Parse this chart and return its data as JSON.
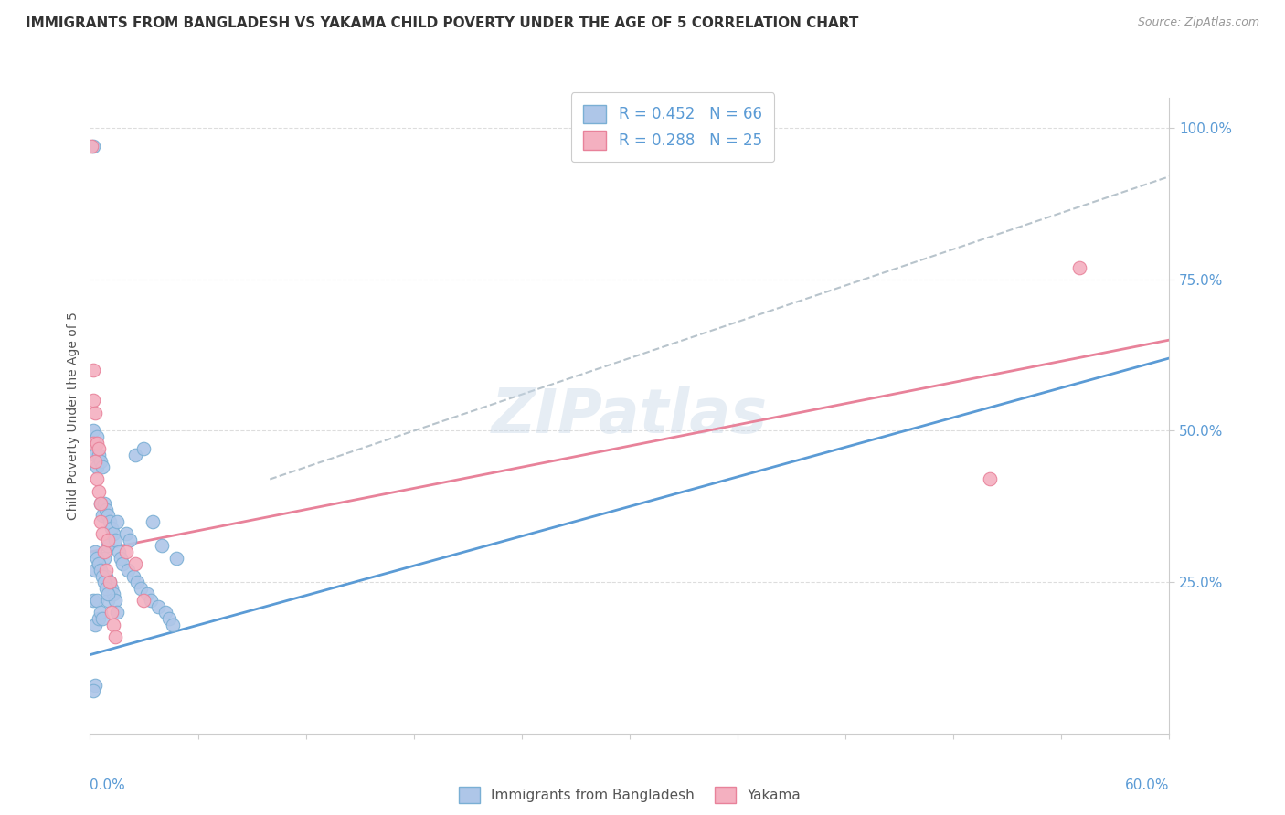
{
  "title": "IMMIGRANTS FROM BANGLADESH VS YAKAMA CHILD POVERTY UNDER THE AGE OF 5 CORRELATION CHART",
  "source": "Source: ZipAtlas.com",
  "ylabel": "Child Poverty Under the Age of 5",
  "xlim": [
    0.0,
    0.6
  ],
  "ylim": [
    0.0,
    1.05
  ],
  "ytick_vals": [
    0.25,
    0.5,
    0.75,
    1.0
  ],
  "ytick_labels": [
    "25.0%",
    "50.0%",
    "75.0%",
    "100.0%"
  ],
  "watermark": "ZIPatlas",
  "blue_scatter_x": [
    0.002,
    0.002,
    0.002,
    0.003,
    0.003,
    0.003,
    0.003,
    0.004,
    0.004,
    0.004,
    0.005,
    0.005,
    0.005,
    0.006,
    0.006,
    0.006,
    0.007,
    0.007,
    0.007,
    0.008,
    0.008,
    0.009,
    0.009,
    0.01,
    0.01,
    0.01,
    0.011,
    0.011,
    0.012,
    0.012,
    0.013,
    0.013,
    0.014,
    0.014,
    0.015,
    0.015,
    0.016,
    0.017,
    0.018,
    0.02,
    0.021,
    0.022,
    0.024,
    0.025,
    0.026,
    0.028,
    0.03,
    0.032,
    0.034,
    0.035,
    0.038,
    0.04,
    0.042,
    0.044,
    0.046,
    0.048,
    0.003,
    0.004,
    0.005,
    0.006,
    0.007,
    0.008,
    0.009,
    0.01,
    0.003,
    0.002
  ],
  "blue_scatter_y": [
    0.97,
    0.5,
    0.22,
    0.48,
    0.46,
    0.27,
    0.18,
    0.49,
    0.44,
    0.22,
    0.46,
    0.28,
    0.19,
    0.45,
    0.38,
    0.2,
    0.44,
    0.36,
    0.19,
    0.38,
    0.29,
    0.37,
    0.26,
    0.36,
    0.31,
    0.22,
    0.35,
    0.25,
    0.34,
    0.24,
    0.33,
    0.23,
    0.32,
    0.22,
    0.35,
    0.2,
    0.3,
    0.29,
    0.28,
    0.33,
    0.27,
    0.32,
    0.26,
    0.46,
    0.25,
    0.24,
    0.47,
    0.23,
    0.22,
    0.35,
    0.21,
    0.31,
    0.2,
    0.19,
    0.18,
    0.29,
    0.3,
    0.29,
    0.28,
    0.27,
    0.26,
    0.25,
    0.24,
    0.23,
    0.08,
    0.07
  ],
  "pink_scatter_x": [
    0.001,
    0.002,
    0.002,
    0.003,
    0.003,
    0.004,
    0.004,
    0.005,
    0.005,
    0.006,
    0.006,
    0.007,
    0.008,
    0.009,
    0.01,
    0.011,
    0.012,
    0.013,
    0.014,
    0.02,
    0.025,
    0.03,
    0.002,
    0.5,
    0.55
  ],
  "pink_scatter_y": [
    0.97,
    0.55,
    0.48,
    0.53,
    0.45,
    0.48,
    0.42,
    0.47,
    0.4,
    0.38,
    0.35,
    0.33,
    0.3,
    0.27,
    0.32,
    0.25,
    0.2,
    0.18,
    0.16,
    0.3,
    0.28,
    0.22,
    0.6,
    0.42,
    0.77
  ],
  "blue_line_x": [
    0.0,
    0.6
  ],
  "blue_line_y": [
    0.13,
    0.62
  ],
  "pink_line_x": [
    0.0,
    0.6
  ],
  "pink_line_y": [
    0.3,
    0.65
  ],
  "dashed_line_x": [
    0.1,
    0.6
  ],
  "dashed_line_y": [
    0.42,
    0.92
  ],
  "blue_line_color": "#5b9bd5",
  "pink_line_color": "#e8829a",
  "blue_scatter_color": "#aec6e8",
  "pink_scatter_color": "#f4b0c0",
  "blue_edge_color": "#7aafd4",
  "pink_edge_color": "#e8829a",
  "dashed_line_color": "#b8c4cc",
  "background_color": "#ffffff",
  "title_fontsize": 11,
  "source_fontsize": 9,
  "tick_label_color": "#5b9bd5",
  "ylabel_color": "#555555",
  "grid_color": "#dddddd",
  "axis_color": "#cccccc"
}
